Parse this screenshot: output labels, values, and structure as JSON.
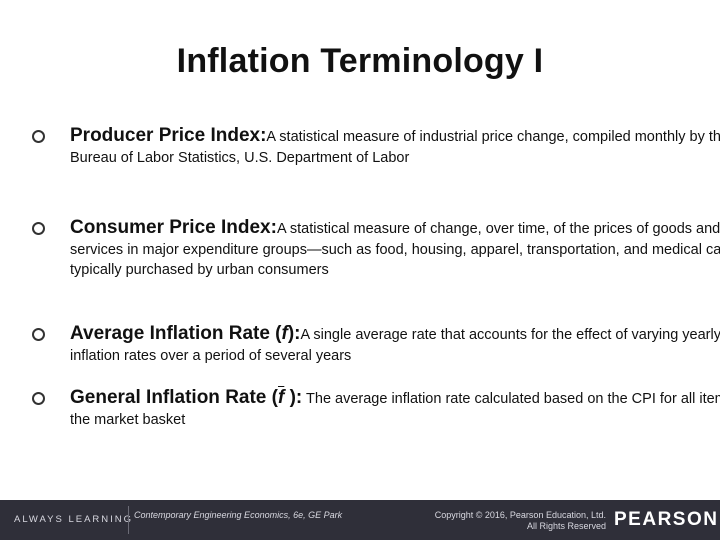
{
  "slide": {
    "title": "Inflation Terminology I"
  },
  "bullets": [
    {
      "term": "Producer Price Index:",
      "definition": "A statistical measure of industrial price change, compiled monthly by the Bureau of Labor Statistics, U.S. Department of Labor"
    },
    {
      "term": "Consumer Price Index:",
      "definition": "A statistical measure of change, over time, of the prices of goods and services in major expenditure groups—such as food, housing, apparel, transportation, and medical care—typically purchased by urban consumers"
    },
    {
      "term_prefix": "Average Inflation Rate (",
      "symbol": "f",
      "term_suffix": "):",
      "definition": "A single average rate that accounts for the effect of varying yearly inflation rates over a period of several years"
    },
    {
      "term_prefix": "General Inflation Rate (",
      "symbol": "f",
      "term_suffix": " ):",
      "definition": " The average inflation rate calculated based on the CPI for all items in the market basket"
    }
  ],
  "footer": {
    "tagline": "ALWAYS LEARNING",
    "book": "Contemporary Engineering Economics, 6e, GE Park",
    "copyright_line1": "Copyright © 2016, Pearson Education, Ltd.",
    "copyright_line2": "All Rights Reserved",
    "brand": "PEARSON"
  }
}
